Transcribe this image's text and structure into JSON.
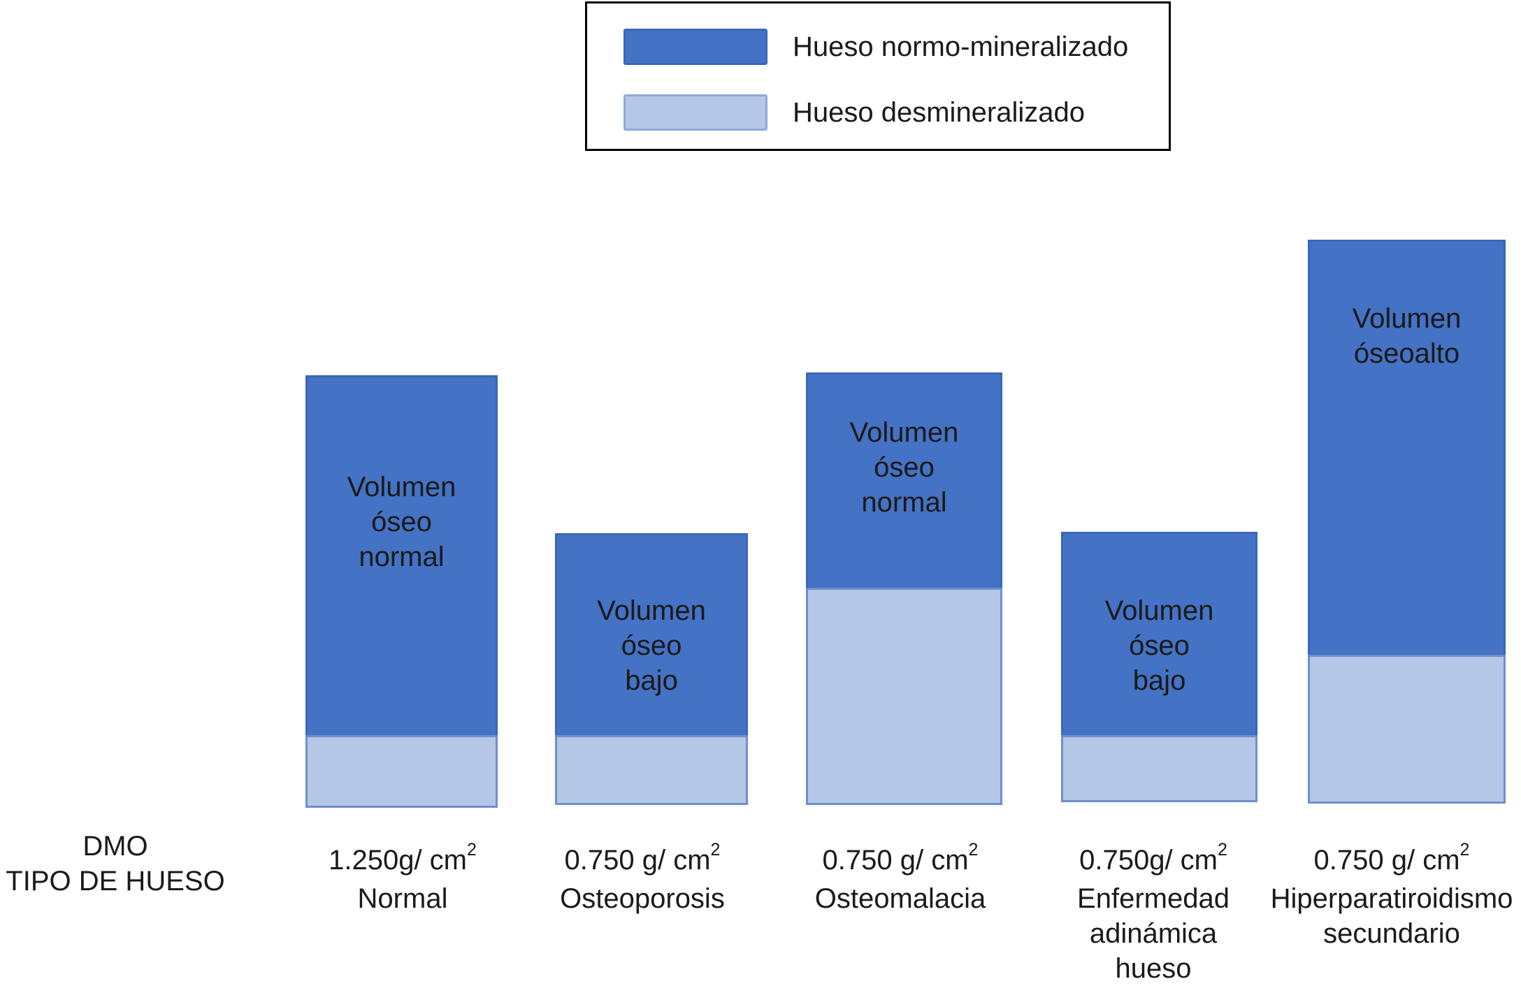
{
  "legend": {
    "items": [
      {
        "label": "Hueso normo-mineralizado",
        "color": "#4472c4"
      },
      {
        "label": "Hueso desmineralizado",
        "color": "#b4c7e7"
      }
    ]
  },
  "row_labels": {
    "dmo": "DMO",
    "tipo": "TIPO DE HUESO"
  },
  "colors": {
    "normo": "#4472c4",
    "desmineralizado": "#b4c7e7"
  },
  "bars": [
    {
      "volume_text": "Volumen\nóseo\nnormal",
      "dmo_value": "1.250g/ cm",
      "dmo_exp": "2",
      "type": "Normal"
    },
    {
      "volume_text": "Volumen\nóseo\nbajo",
      "dmo_value": "0.750 g/ cm",
      "dmo_exp": "2",
      "type": "Osteoporosis"
    },
    {
      "volume_text": "Volumen\nóseo\nnormal",
      "dmo_value": "0.750 g/ cm",
      "dmo_exp": "2",
      "type": "Osteomalacia"
    },
    {
      "volume_text": "Volumen\nóseo\nbajo",
      "dmo_value": "0.750g/ cm",
      "dmo_exp": "2",
      "type": "Enfermedad\nadinámica\nhueso"
    },
    {
      "volume_text": "Volumen\nóseoalto",
      "dmo_value": "0.750 g/ cm",
      "dmo_exp": "2",
      "type": "Hiperparatiroidismo\nsecundario"
    }
  ]
}
